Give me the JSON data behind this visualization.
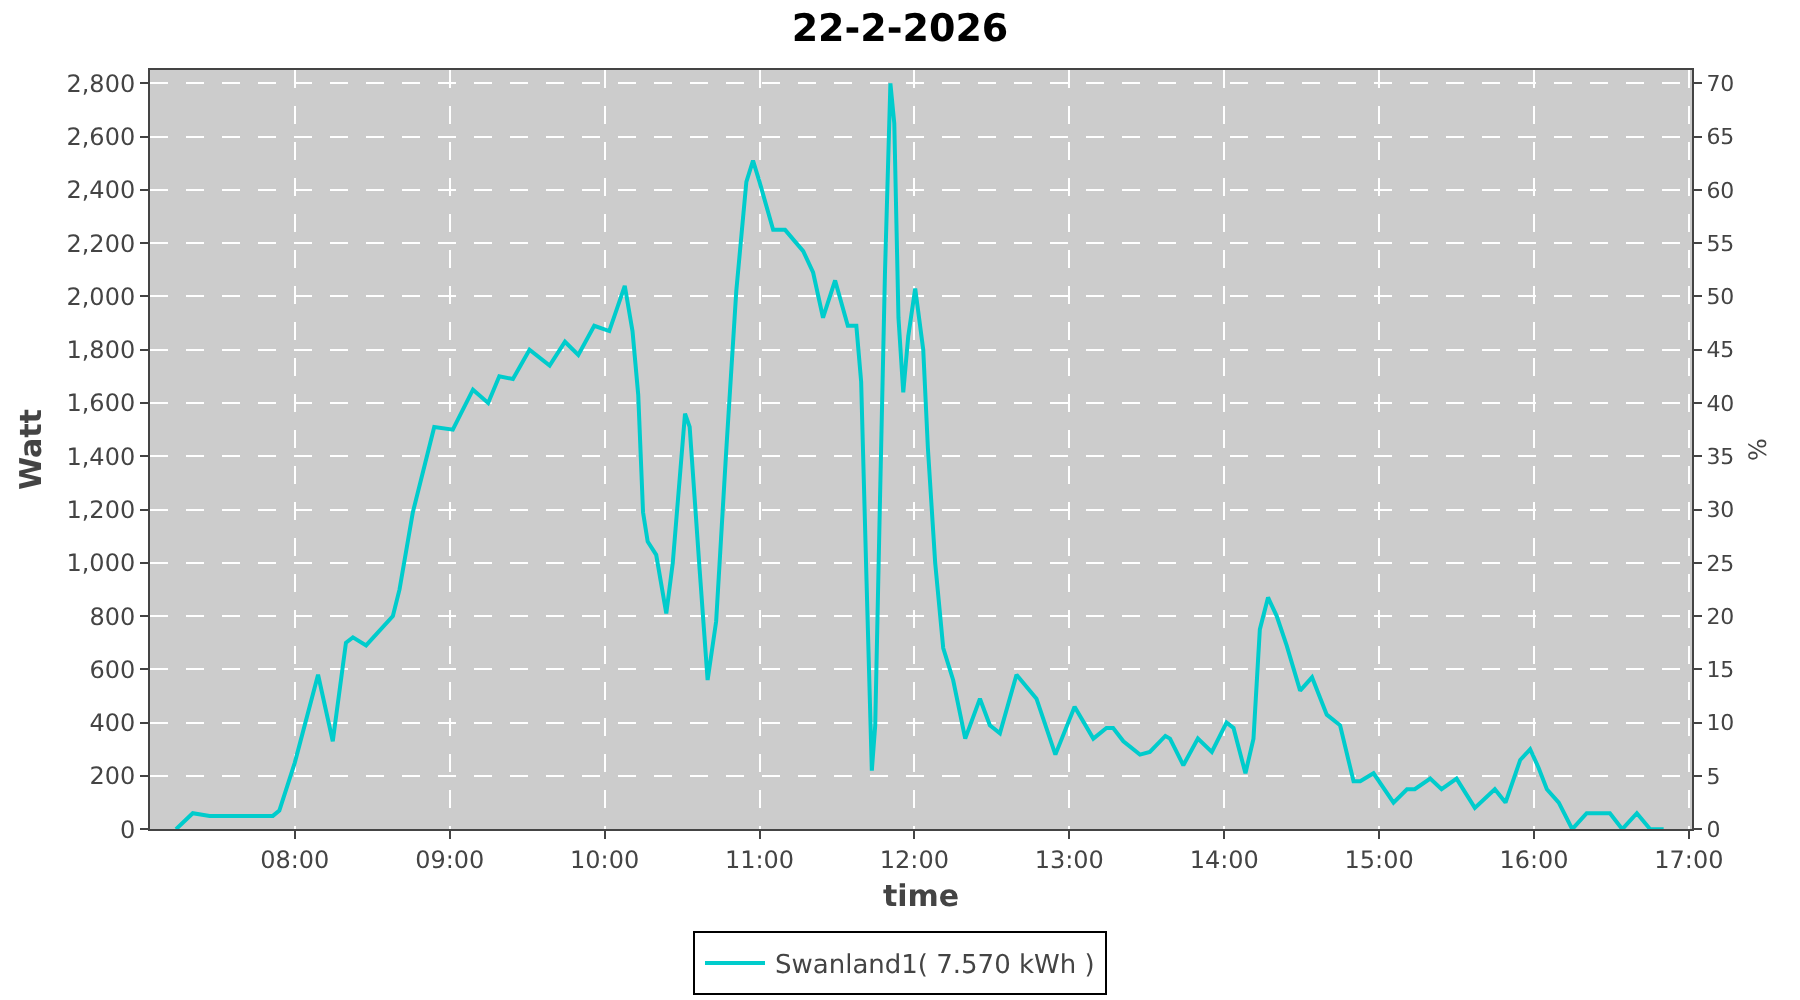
{
  "chart_data": {
    "type": "line",
    "title": "22-2-2026",
    "xlabel": "time",
    "ylabel": "Watt",
    "y2label": "%",
    "x": [
      7.233,
      7.341,
      7.45,
      7.6,
      7.75,
      7.858,
      7.9,
      8.0,
      8.15,
      8.245,
      8.33,
      8.375,
      8.46,
      8.633,
      8.676,
      8.762,
      8.9,
      9.02,
      9.15,
      9.248,
      9.32,
      9.408,
      9.515,
      9.645,
      9.744,
      9.83,
      9.933,
      10.03,
      10.13,
      10.18,
      10.217,
      10.248,
      10.278,
      10.333,
      10.398,
      10.44,
      10.519,
      10.549,
      10.614,
      10.665,
      10.72,
      10.786,
      10.85,
      10.915,
      10.958,
      11.0,
      11.088,
      11.165,
      11.282,
      11.346,
      11.41,
      11.488,
      11.57,
      11.625,
      11.656,
      11.69,
      11.725,
      11.747,
      11.776,
      11.81,
      11.845,
      11.87,
      11.897,
      11.928,
      11.96,
      12.005,
      12.057,
      12.087,
      12.134,
      12.186,
      12.25,
      12.328,
      12.423,
      12.487,
      12.552,
      12.659,
      12.788,
      12.91,
      13.034,
      13.155,
      13.24,
      13.283,
      13.349,
      13.456,
      13.52,
      13.62,
      13.65,
      13.736,
      13.83,
      13.92,
      14.015,
      14.06,
      14.137,
      14.189,
      14.23,
      14.283,
      14.339,
      14.403,
      14.49,
      14.567,
      14.662,
      14.748,
      14.835,
      14.878,
      14.964,
      15.093,
      15.18,
      15.23,
      15.33,
      15.403,
      15.5,
      15.618,
      15.747,
      15.816,
      15.911,
      15.975,
      16.03,
      16.083,
      16.16,
      16.247,
      16.34,
      16.49,
      16.57,
      16.664,
      16.75,
      16.837
    ],
    "series": [
      {
        "name": "Swanland1( 7.570 kWh )",
        "color": "#00cccc",
        "values": [
          0,
          60,
          50,
          50,
          50,
          50,
          70,
          250,
          580,
          330,
          700,
          720,
          690,
          800,
          900,
          1190,
          1510,
          1500,
          1650,
          1600,
          1700,
          1690,
          1800,
          1740,
          1830,
          1780,
          1890,
          1870,
          2040,
          1870,
          1630,
          1190,
          1080,
          1030,
          810,
          1000,
          1560,
          1510,
          970,
          560,
          780,
          1430,
          2020,
          2430,
          2510,
          2430,
          2250,
          2250,
          2170,
          2090,
          1920,
          2060,
          1890,
          1890,
          1680,
          950,
          220,
          390,
          1190,
          2090,
          2800,
          2650,
          1920,
          1640,
          1850,
          2030,
          1800,
          1430,
          1000,
          680,
          560,
          340,
          490,
          390,
          360,
          580,
          490,
          280,
          460,
          340,
          380,
          380,
          330,
          280,
          290,
          350,
          340,
          240,
          340,
          290,
          400,
          380,
          210,
          340,
          750,
          870,
          800,
          690,
          520,
          570,
          430,
          390,
          180,
          180,
          210,
          100,
          150,
          150,
          190,
          150,
          190,
          80,
          150,
          100,
          260,
          300,
          230,
          150,
          100,
          0,
          60,
          60,
          0,
          60,
          0,
          0
        ]
      }
    ],
    "xlim": [
      7.065,
      17.02
    ],
    "xticks": [
      {
        "value": 8,
        "label": "08:00"
      },
      {
        "value": 9,
        "label": "09:00"
      },
      {
        "value": 10,
        "label": "10:00"
      },
      {
        "value": 11,
        "label": "11:00"
      },
      {
        "value": 12,
        "label": "12:00"
      },
      {
        "value": 13,
        "label": "13:00"
      },
      {
        "value": 14,
        "label": "14:00"
      },
      {
        "value": 15,
        "label": "15:00"
      },
      {
        "value": 16,
        "label": "16:00"
      },
      {
        "value": 17,
        "label": "17:00"
      }
    ],
    "ylim": [
      0,
      2850
    ],
    "yticks": [
      0,
      200,
      400,
      600,
      800,
      {
        "value": 1000,
        "label": "1,000"
      },
      {
        "value": 1200,
        "label": "1,200"
      },
      {
        "value": 1400,
        "label": "1,400"
      },
      {
        "value": 1600,
        "label": "1,600"
      },
      {
        "value": 1800,
        "label": "1,800"
      },
      {
        "value": 2000,
        "label": "2,000"
      },
      {
        "value": 2200,
        "label": "2,200"
      },
      {
        "value": 2400,
        "label": "2,400"
      },
      {
        "value": 2600,
        "label": "2,600"
      },
      {
        "value": 2800,
        "label": "2,800"
      }
    ],
    "y2lim": [
      0,
      71.25
    ],
    "y2ticks": [
      0,
      5,
      10,
      15,
      20,
      25,
      30,
      35,
      40,
      45,
      50,
      55,
      60,
      65,
      70
    ],
    "grid": true,
    "legend": "bottom"
  }
}
